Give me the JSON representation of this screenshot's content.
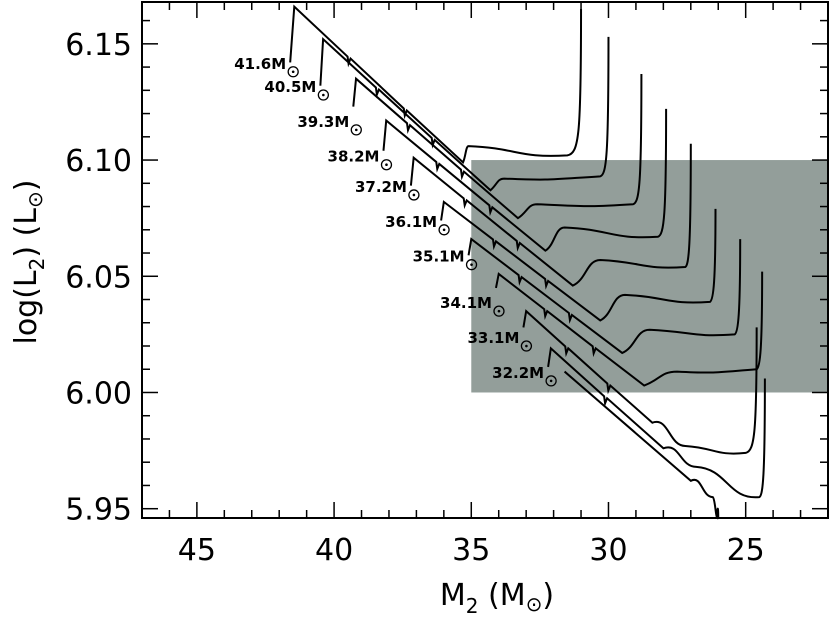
{
  "chart_data": {
    "type": "line",
    "title": "",
    "xlabel": {
      "main": "M",
      "sub": "2",
      "unit_prefix": " (M",
      "unit_suffix": ")"
    },
    "ylabel": {
      "main": "log(L",
      "sub": "2",
      "unit_prefix": ") (L",
      "unit_suffix": ")"
    },
    "xlim": [
      47,
      22
    ],
    "ylim": [
      5.946,
      6.168
    ],
    "x_ticks": [
      45,
      40,
      35,
      30,
      25
    ],
    "x_tick_labels": [
      "45",
      "40",
      "35",
      "30",
      "25"
    ],
    "y_ticks": [
      5.95,
      6.0,
      6.05,
      6.1,
      6.15
    ],
    "y_tick_labels": [
      "5.95",
      "6.00",
      "6.05",
      "6.10",
      "6.15"
    ],
    "shaded_region": {
      "x": [
        35,
        22
      ],
      "y": [
        6.0,
        6.1
      ],
      "color": "#939e9a"
    },
    "line_color": "#000000",
    "series": [
      {
        "label": "41.6M",
        "label_x": 41.6,
        "label_y": 6.141,
        "start": [
          41.6,
          6.142
        ],
        "peak": [
          41.45,
          6.166
        ],
        "diag_end": [
          35.3,
          6.099
        ],
        "dip": [
          35.1,
          6.106
        ],
        "flat_end": [
          31.5,
          6.102
        ],
        "hook": [
          31.0,
          6.165
        ],
        "kinks": 2
      },
      {
        "label": "40.5M",
        "label_x": 40.5,
        "label_y": 6.131,
        "start": [
          40.5,
          6.132
        ],
        "peak": [
          40.4,
          6.152
        ],
        "diag_end": [
          34.3,
          6.087
        ],
        "dip": [
          33.8,
          6.092
        ],
        "flat_end": [
          30.3,
          6.093
        ],
        "hook": [
          30.0,
          6.153
        ],
        "kinks": 2
      },
      {
        "label": "39.3M",
        "label_x": 39.3,
        "label_y": 6.116,
        "start": [
          39.3,
          6.123
        ],
        "peak": [
          39.2,
          6.135
        ],
        "diag_end": [
          33.3,
          6.075
        ],
        "dip": [
          32.6,
          6.081
        ],
        "flat_end": [
          29.1,
          6.081
        ],
        "hook": [
          28.8,
          6.137
        ],
        "kinks": 2
      },
      {
        "label": "38.2M",
        "label_x": 38.2,
        "label_y": 6.101,
        "start": [
          38.2,
          6.104
        ],
        "peak": [
          38.1,
          6.117
        ],
        "diag_end": [
          32.3,
          6.061
        ],
        "dip": [
          31.6,
          6.071
        ],
        "flat_end": [
          28.2,
          6.067
        ],
        "hook": [
          27.9,
          6.122
        ],
        "kinks": 2
      },
      {
        "label": "37.2M",
        "label_x": 37.2,
        "label_y": 6.088,
        "start": [
          37.2,
          6.089
        ],
        "peak": [
          37.1,
          6.101
        ],
        "diag_end": [
          31.3,
          6.046
        ],
        "dip": [
          30.3,
          6.057
        ],
        "flat_end": [
          27.2,
          6.054
        ],
        "hook": [
          27.0,
          6.107
        ],
        "kinks": 2
      },
      {
        "label": "36.1M",
        "label_x": 36.1,
        "label_y": 6.073,
        "start": [
          36.1,
          6.074
        ],
        "peak": [
          36.0,
          6.082
        ],
        "diag_end": [
          30.3,
          6.031
        ],
        "dip": [
          29.4,
          6.042
        ],
        "flat_end": [
          26.3,
          6.039
        ],
        "hook": [
          26.1,
          6.079
        ],
        "kinks": 2
      },
      {
        "label": "35.1M",
        "label_x": 35.1,
        "label_y": 6.058,
        "start": [
          35.1,
          6.059
        ],
        "peak": [
          35.0,
          6.066
        ],
        "diag_end": [
          29.5,
          6.017
        ],
        "dip": [
          28.5,
          6.027
        ],
        "flat_end": [
          25.4,
          6.025
        ],
        "hook": [
          25.2,
          6.066
        ],
        "kinks": 2
      },
      {
        "label": "34.1M",
        "label_x": 34.1,
        "label_y": 6.038,
        "start": [
          34.1,
          6.045
        ],
        "peak": [
          34.0,
          6.051
        ],
        "diag_end": [
          28.7,
          6.003
        ],
        "dip": [
          27.5,
          6.009
        ],
        "flat_end": [
          24.6,
          6.01
        ],
        "hook": [
          24.4,
          6.052
        ],
        "kinks": 2
      },
      {
        "label": "33.1M",
        "label_x": 33.1,
        "label_y": 6.023,
        "start": [
          33.1,
          6.028
        ],
        "peak": [
          33.0,
          6.035
        ],
        "diag_end": [
          28.4,
          5.987
        ],
        "dip": [
          27.2,
          5.977
        ],
        "flat_end": [
          25.0,
          5.974
        ],
        "hook": [
          24.6,
          6.028
        ],
        "kinks": 2
      },
      {
        "label": "32.2M",
        "label_x": 32.2,
        "label_y": 6.008,
        "start": [
          32.2,
          6.011
        ],
        "peak": [
          32.1,
          6.019
        ],
        "diag_end": [
          28.0,
          5.976
        ],
        "dip": [
          26.8,
          5.968
        ],
        "flat_end": [
          24.5,
          5.955
        ],
        "hook": [
          24.3,
          6.006
        ],
        "kinks": 1
      },
      {
        "label": "",
        "label_x": 32.2,
        "label_y": 6.008,
        "start": [
          31.6,
          6.009
        ],
        "peak": [
          31.6,
          6.009
        ],
        "diag_end": [
          27.0,
          5.962
        ],
        "dip": [
          26.2,
          5.955
        ],
        "flat_end": [
          26.0,
          5.946
        ],
        "hook": [
          26.0,
          5.946
        ],
        "kinks": 0
      }
    ],
    "mass_unit_glyph": "⊙",
    "legend": "none",
    "grid": false
  }
}
